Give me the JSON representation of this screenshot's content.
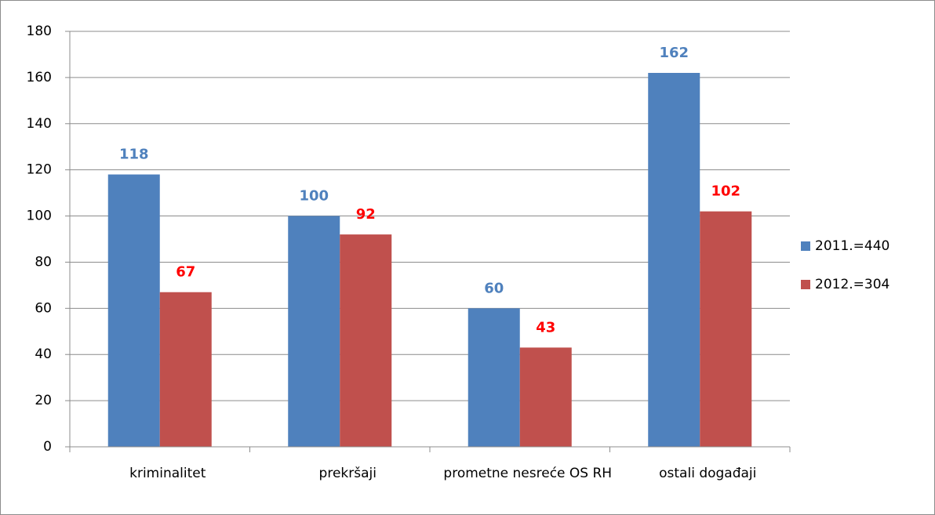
{
  "chart_data": {
    "type": "bar",
    "categories": [
      "kriminalitet",
      "prekršaji",
      "prometne nesreće OS RH",
      "ostali događaji"
    ],
    "series": [
      {
        "name": "2011.=440",
        "color": "#4f81bd",
        "label_color": "#4f81bd",
        "values": [
          118,
          100,
          60,
          162
        ]
      },
      {
        "name": "2012.=304",
        "color": "#c0504d",
        "label_color": "#ff0000",
        "values": [
          67,
          92,
          43,
          102
        ]
      }
    ],
    "ylim": [
      0,
      180
    ],
    "yticks": [
      0,
      20,
      40,
      60,
      80,
      100,
      120,
      140,
      160,
      180
    ],
    "grid": true,
    "legend": "right"
  }
}
